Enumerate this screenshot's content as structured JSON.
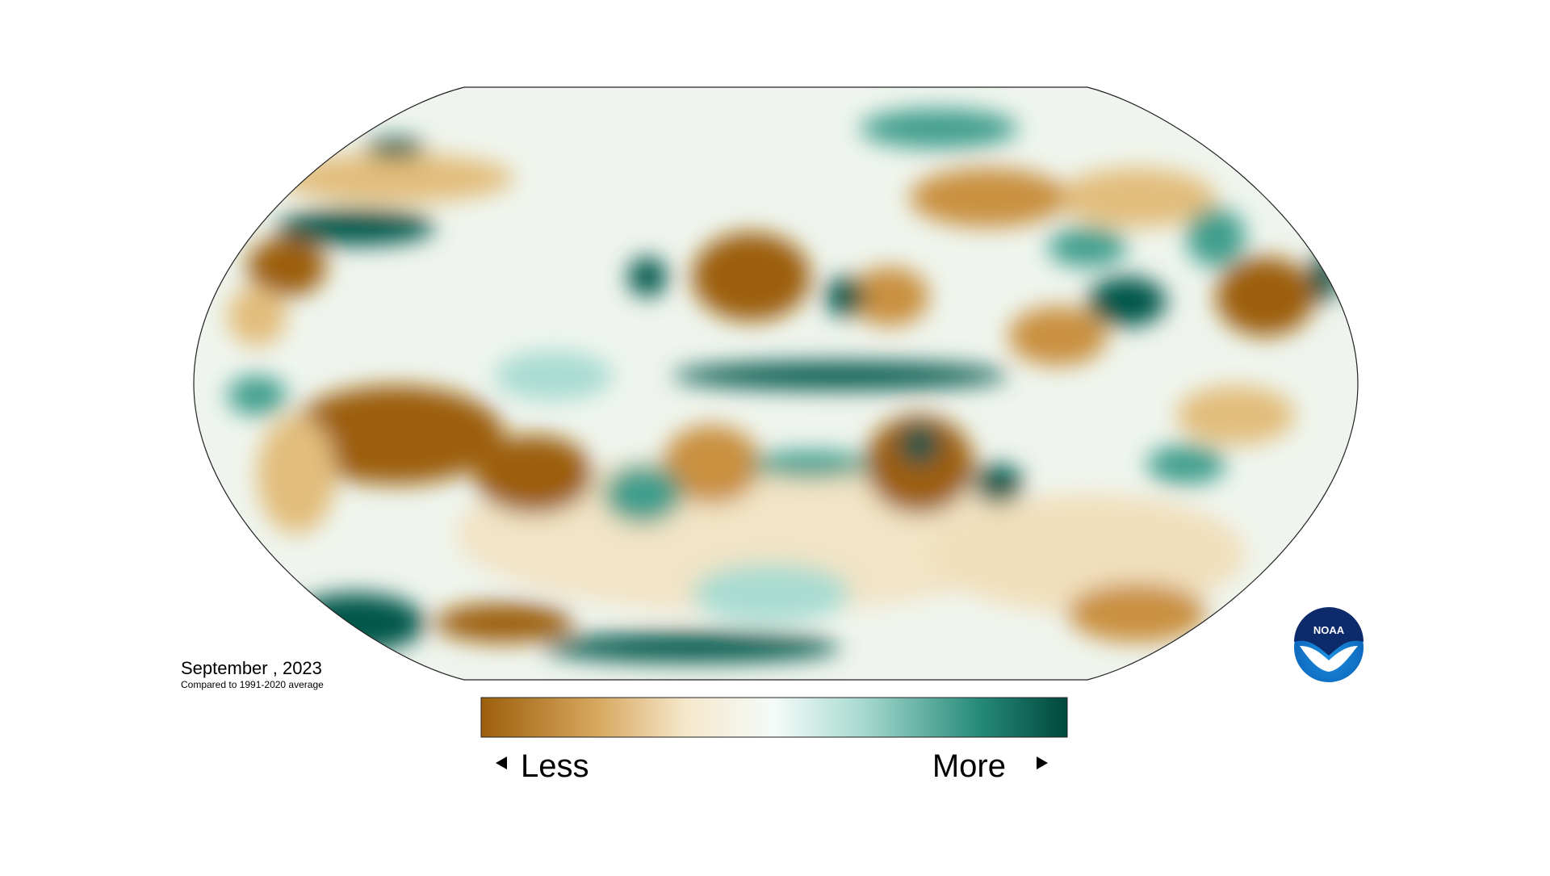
{
  "map": {
    "date": "September , 2023",
    "subtitle": "Compared to 1991-2020 average"
  },
  "legend": {
    "low_label": "Less",
    "high_label": "More"
  },
  "logo": {
    "text": "NOAA"
  }
}
